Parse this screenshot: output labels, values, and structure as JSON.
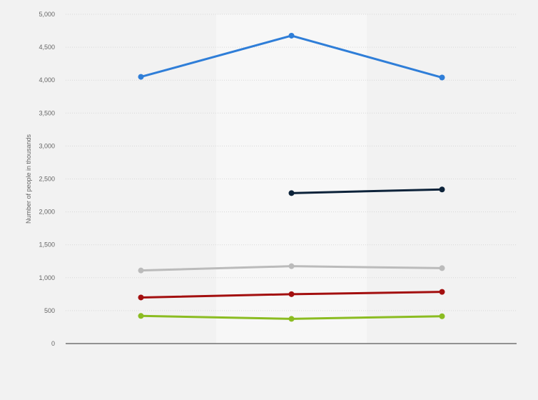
{
  "chart_data": {
    "type": "line",
    "title": "",
    "xlabel": "",
    "ylabel": "Number of people in thousands",
    "ylim": [
      0,
      5000
    ],
    "yticks": [
      0,
      500,
      1000,
      1500,
      2000,
      2500,
      3000,
      3500,
      4000,
      4500,
      5000
    ],
    "ytick_labels": [
      "0",
      "500",
      "1,000",
      "1,500",
      "2,000",
      "2,500",
      "3,000",
      "3,500",
      "4,000",
      "4,500",
      "5,000"
    ],
    "categories": [
      "",
      "",
      ""
    ],
    "grid": true,
    "legend": "none",
    "series": [
      {
        "color": "#2f7ed8",
        "values": [
          4050,
          4675,
          4040
        ]
      },
      {
        "color": "#0d233a",
        "values": [
          null,
          2285,
          2340
        ]
      },
      {
        "color": "#bbbbbb",
        "values": [
          1110,
          1175,
          1145
        ]
      },
      {
        "color": "#a30f0f",
        "values": [
          700,
          750,
          785
        ]
      },
      {
        "color": "#8bbc21",
        "values": [
          420,
          375,
          415
        ]
      }
    ]
  },
  "colors": {
    "background": "#f2f2f2",
    "plot_band": "#f7f7f7",
    "grid": "#d8d8d8",
    "axis": "#333333"
  }
}
